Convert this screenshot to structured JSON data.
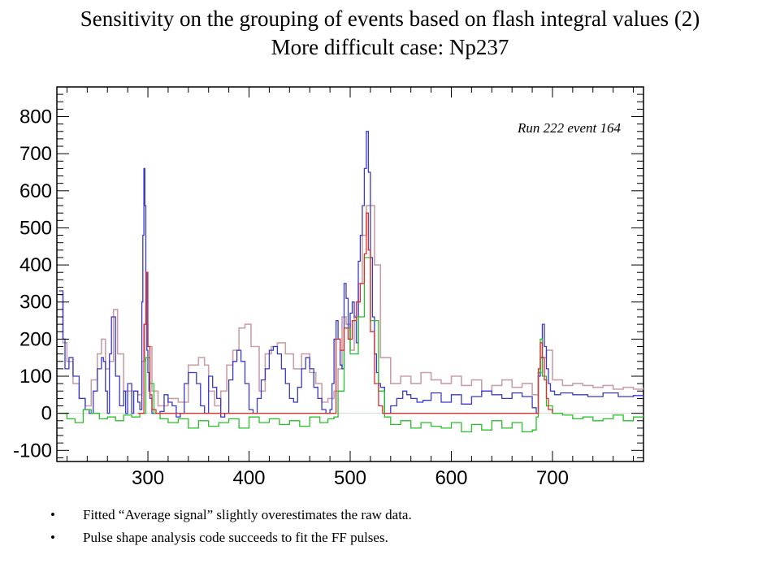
{
  "slide": {
    "title_line1": "Sensitivity on the grouping of events based on flash integral values (2)",
    "title_line2": "More difficult case: Np237",
    "bullets": [
      "Fitted “Average signal”  slightly overestimates the raw data.",
      "Pulse shape analysis code succeeds to fit the FF pulses."
    ]
  },
  "chart_data": {
    "type": "line",
    "title": "",
    "xlabel": "",
    "ylabel": "",
    "annotation": "Run 222 event 164",
    "xlim": [
      210,
      790
    ],
    "ylim": [
      -130,
      880
    ],
    "x_ticks": [
      300,
      400,
      500,
      600,
      700
    ],
    "y_ticks": [
      -100,
      0,
      100,
      200,
      300,
      400,
      500,
      600,
      700,
      800
    ],
    "grid": false,
    "colors": {
      "raw_signal": "#3a3ac8",
      "average_signal": "#c9a0a8",
      "fitted_pulses": "#d83030",
      "residual": "#28c028",
      "baseline": "#ccddcc"
    },
    "series": [
      {
        "key": "raw_signal",
        "x": [
          212,
          216,
          218,
          222,
          226,
          232,
          238,
          242,
          246,
          250,
          254,
          256,
          258,
          260,
          262,
          264,
          268,
          272,
          276,
          278,
          280,
          284,
          286,
          290,
          292,
          294,
          295,
          296,
          297,
          298,
          299,
          300,
          301,
          302,
          304,
          308,
          312,
          316,
          320,
          324,
          328,
          332,
          336,
          340,
          344,
          348,
          352,
          356,
          360,
          364,
          368,
          372,
          376,
          380,
          384,
          388,
          392,
          396,
          400,
          404,
          408,
          412,
          416,
          420,
          424,
          428,
          432,
          436,
          440,
          444,
          448,
          452,
          456,
          460,
          464,
          468,
          472,
          476,
          480,
          482,
          484,
          486,
          488,
          490,
          492,
          494,
          496,
          498,
          500,
          502,
          504,
          506,
          508,
          510,
          512,
          514,
          516,
          518,
          520,
          522,
          524,
          526,
          528,
          530,
          534,
          540,
          546,
          552,
          556,
          560,
          566,
          572,
          580,
          590,
          600,
          610,
          620,
          630,
          640,
          650,
          660,
          670,
          680,
          684,
          686,
          688,
          690,
          692,
          694,
          696,
          698,
          702,
          708,
          720,
          735,
          750,
          765,
          780,
          790
        ],
        "y": [
          330,
          200,
          120,
          150,
          100,
          40,
          10,
          0,
          60,
          120,
          150,
          140,
          60,
          0,
          160,
          260,
          100,
          20,
          60,
          0,
          80,
          0,
          60,
          30,
          10,
          300,
          480,
          660,
          560,
          380,
          170,
          110,
          60,
          40,
          0,
          0,
          5,
          50,
          30,
          20,
          -10,
          0,
          80,
          110,
          110,
          80,
          20,
          0,
          100,
          70,
          40,
          -10,
          0,
          90,
          140,
          170,
          140,
          80,
          10,
          0,
          40,
          90,
          120,
          170,
          180,
          160,
          120,
          80,
          40,
          30,
          70,
          120,
          150,
          120,
          70,
          40,
          10,
          0,
          10,
          80,
          200,
          250,
          200,
          130,
          120,
          350,
          310,
          200,
          270,
          300,
          260,
          190,
          410,
          480,
          560,
          660,
          760,
          650,
          420,
          260,
          160,
          110,
          80,
          70,
          0,
          20,
          40,
          60,
          50,
          40,
          30,
          35,
          55,
          30,
          50,
          25,
          45,
          60,
          50,
          40,
          55,
          45,
          15,
          0,
          100,
          150,
          240,
          180,
          120,
          80,
          60,
          50,
          55,
          50,
          45,
          55,
          45,
          48,
          40
        ]
      },
      {
        "key": "average_signal",
        "x": [
          212,
          216,
          220,
          226,
          232,
          238,
          244,
          250,
          254,
          258,
          262,
          266,
          270,
          276,
          282,
          290,
          294,
          297,
          300,
          304,
          310,
          320,
          330,
          340,
          350,
          356,
          360,
          366,
          372,
          378,
          384,
          390,
          396,
          402,
          410,
          416,
          422,
          428,
          436,
          444,
          452,
          460,
          466,
          472,
          478,
          484,
          488,
          492,
          496,
          500,
          504,
          508,
          512,
          516,
          520,
          524,
          530,
          540,
          550,
          560,
          570,
          580,
          590,
          600,
          610,
          620,
          630,
          640,
          650,
          660,
          670,
          680,
          686,
          690,
          694,
          700,
          710,
          720,
          730,
          740,
          750,
          760,
          770,
          780,
          790
        ],
        "y": [
          320,
          190,
          140,
          80,
          40,
          20,
          90,
          160,
          200,
          120,
          140,
          280,
          160,
          60,
          60,
          50,
          140,
          240,
          180,
          60,
          20,
          40,
          30,
          130,
          150,
          130,
          60,
          20,
          60,
          130,
          170,
          230,
          240,
          180,
          60,
          160,
          180,
          190,
          160,
          120,
          160,
          110,
          80,
          30,
          40,
          60,
          120,
          260,
          240,
          170,
          260,
          350,
          480,
          560,
          560,
          400,
          150,
          80,
          100,
          80,
          110,
          90,
          80,
          100,
          75,
          90,
          60,
          75,
          90,
          70,
          80,
          50,
          110,
          150,
          170,
          90,
          75,
          80,
          75,
          70,
          75,
          65,
          70,
          65,
          70
        ]
      },
      {
        "key": "fitted_pulses",
        "x": [
          290,
          294,
          296,
          298,
          300,
          302,
          304,
          308,
          482,
          486,
          490,
          494,
          498,
          502,
          506,
          510,
          514,
          516,
          518,
          520,
          524,
          528,
          532,
          682,
          684,
          686,
          688,
          690,
          692,
          694,
          696,
          700
        ],
        "y": [
          0,
          0,
          240,
          380,
          180,
          50,
          10,
          0,
          0,
          200,
          170,
          230,
          200,
          250,
          300,
          350,
          430,
          540,
          440,
          220,
          80,
          20,
          0,
          0,
          0,
          120,
          190,
          150,
          90,
          40,
          10,
          0
        ]
      },
      {
        "key": "residual",
        "x": [
          212,
          220,
          228,
          236,
          244,
          252,
          260,
          268,
          276,
          284,
          292,
          298,
          302,
          306,
          312,
          320,
          330,
          340,
          350,
          360,
          370,
          380,
          390,
          400,
          410,
          420,
          430,
          440,
          450,
          460,
          470,
          478,
          484,
          488,
          494,
          500,
          508,
          514,
          520,
          528,
          534,
          540,
          550,
          560,
          570,
          580,
          590,
          600,
          610,
          620,
          630,
          640,
          650,
          660,
          670,
          680,
          684,
          686,
          688,
          690,
          694,
          700,
          710,
          720,
          730,
          740,
          750,
          760,
          770,
          780,
          790
        ],
        "y": [
          0,
          -15,
          -25,
          10,
          0,
          -15,
          -10,
          -20,
          -5,
          -10,
          0,
          150,
          80,
          0,
          -15,
          -25,
          -15,
          -40,
          -20,
          -35,
          -25,
          -15,
          -40,
          -10,
          -25,
          -15,
          -30,
          -20,
          -35,
          -10,
          -25,
          -15,
          -10,
          60,
          230,
          160,
          260,
          420,
          250,
          60,
          -10,
          -30,
          -20,
          -40,
          -25,
          -35,
          -40,
          -25,
          -50,
          -30,
          -45,
          -20,
          -40,
          -25,
          -50,
          -45,
          -10,
          110,
          200,
          100,
          20,
          0,
          -5,
          -15,
          -10,
          -20,
          -15,
          -5,
          -20,
          -10,
          -5
        ]
      }
    ]
  }
}
